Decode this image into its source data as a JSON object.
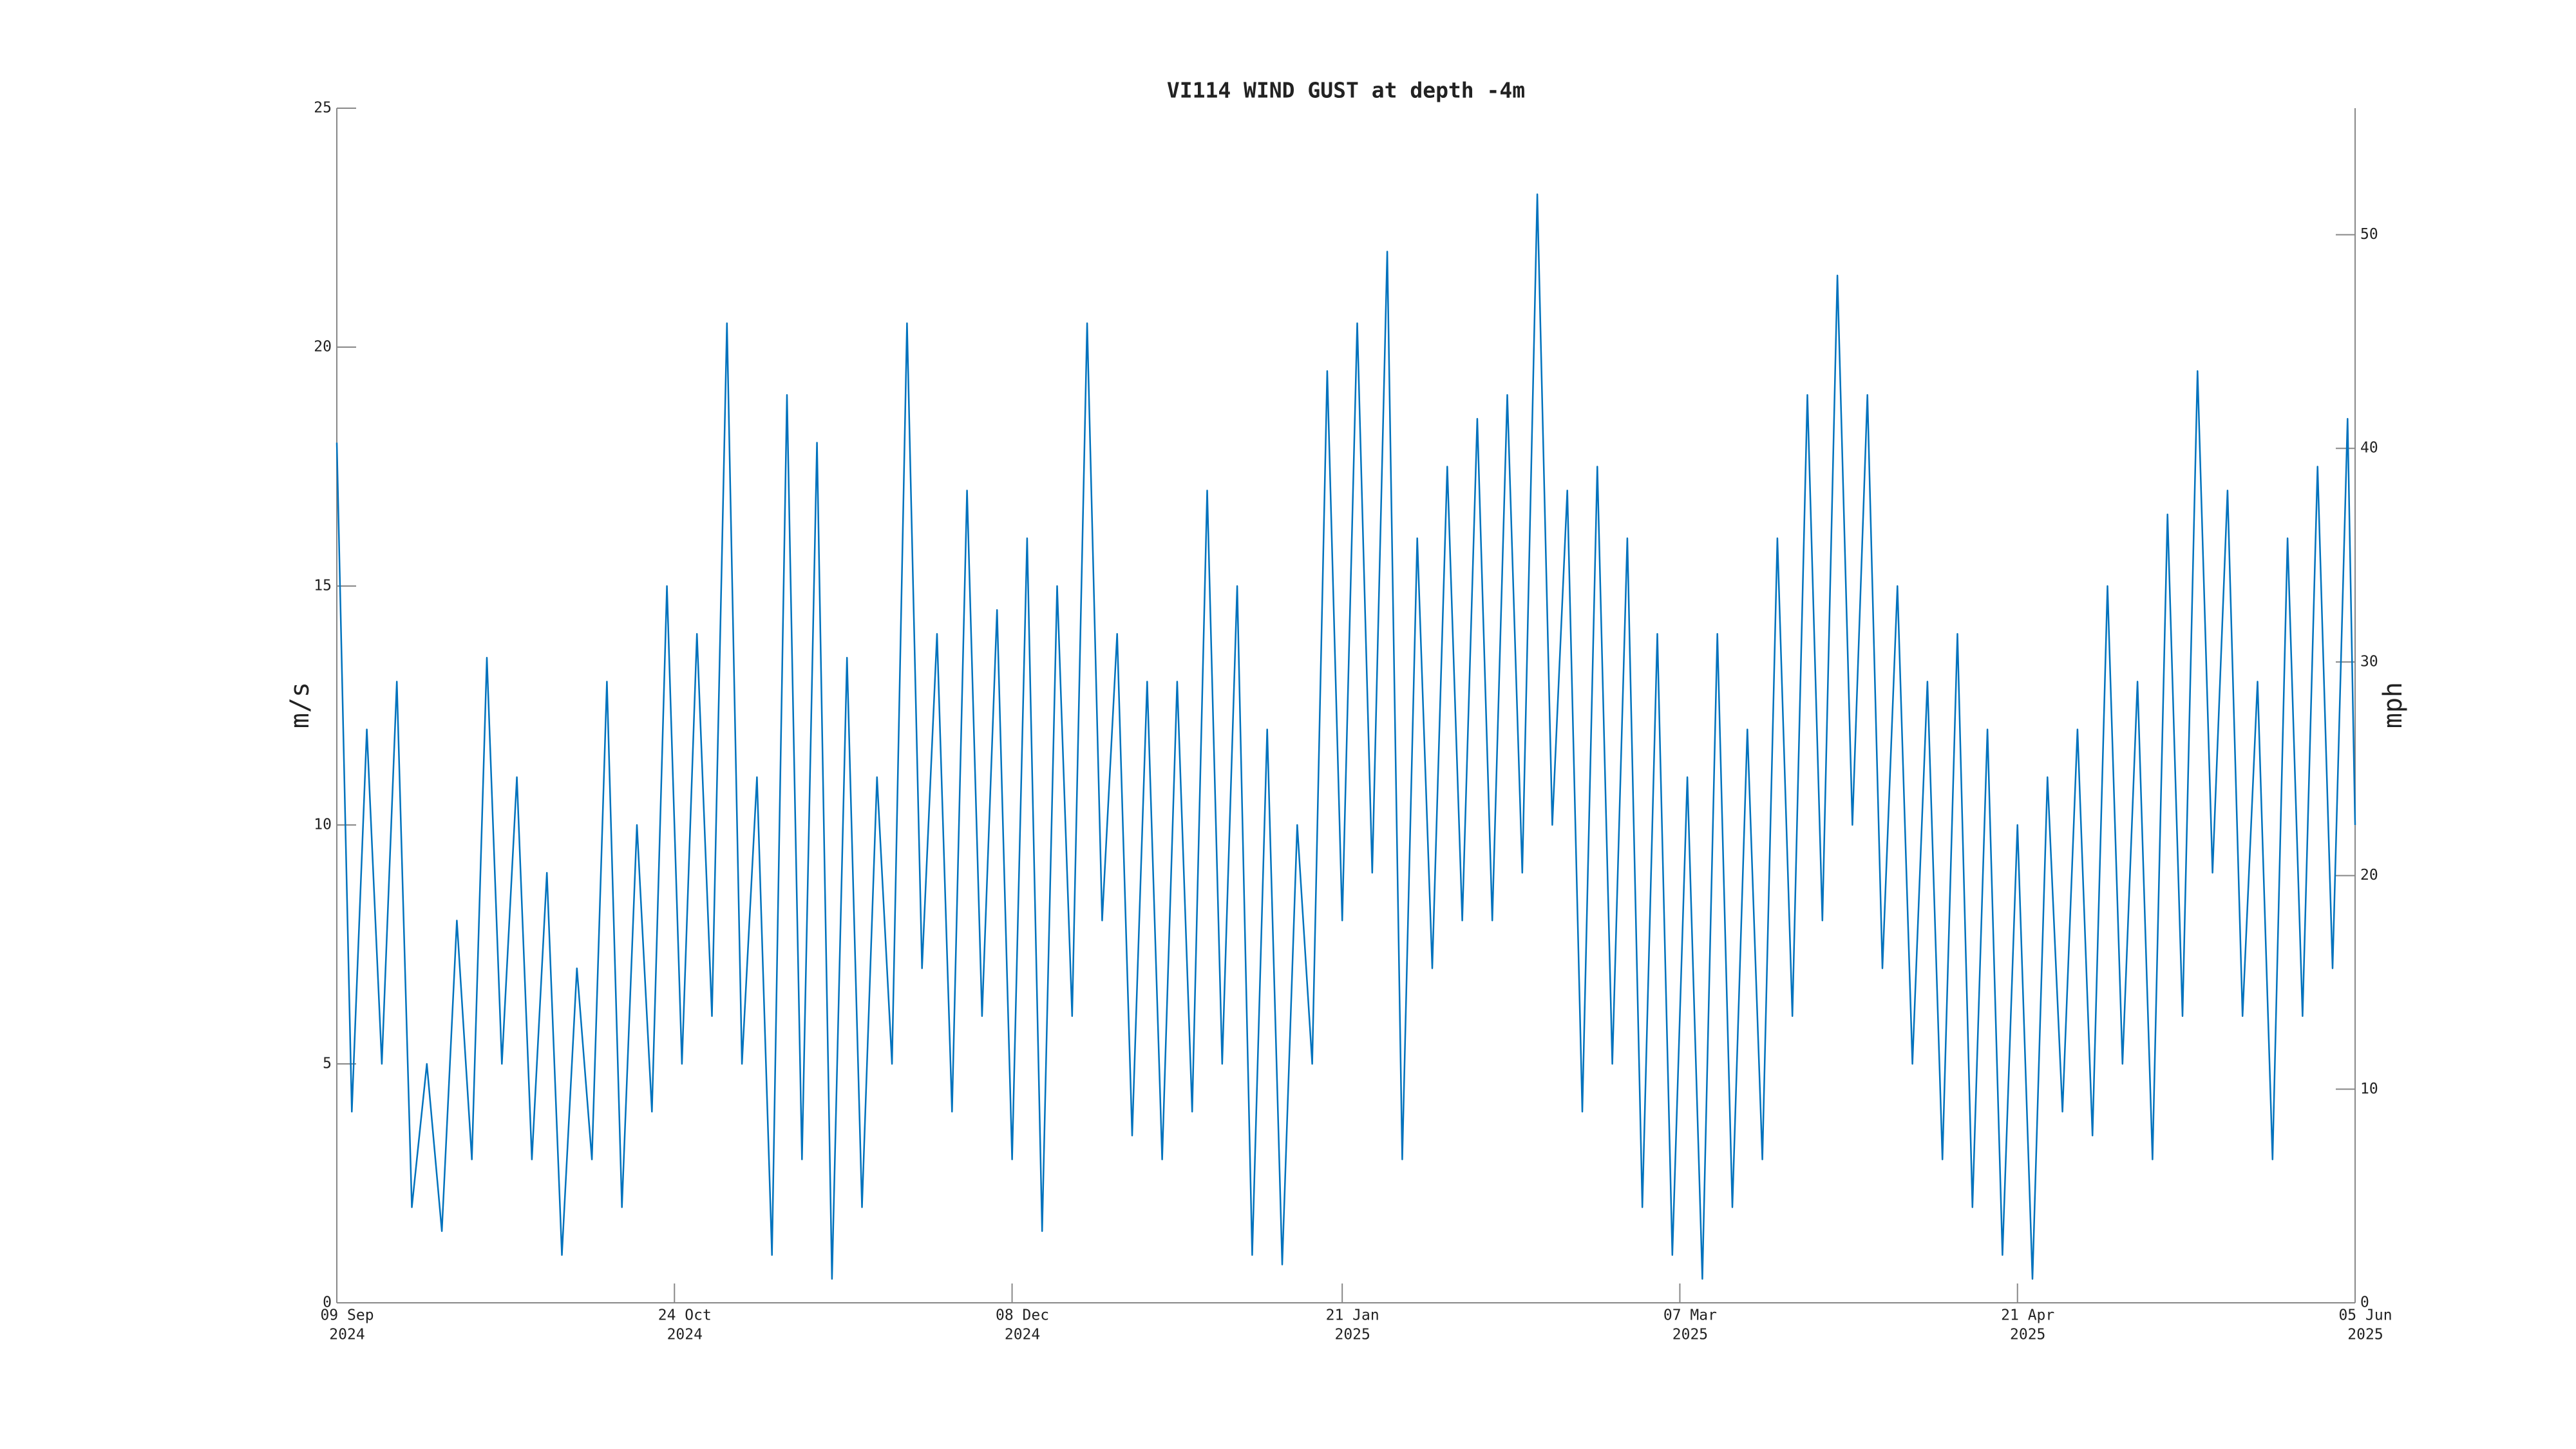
{
  "chart_data": {
    "type": "line",
    "title": "VI114 WIND GUST at depth -4m",
    "ylabel": "m/s",
    "y2label": "mph",
    "color": "#0072bd",
    "x": [
      "2024-09-09",
      "2024-09-11",
      "2024-09-13",
      "2024-09-15",
      "2024-09-17",
      "2024-09-19",
      "2024-09-21",
      "2024-09-23",
      "2024-09-25",
      "2024-09-27",
      "2024-09-29",
      "2024-10-01",
      "2024-10-03",
      "2024-10-05",
      "2024-10-07",
      "2024-10-09",
      "2024-10-11",
      "2024-10-13",
      "2024-10-15",
      "2024-10-17",
      "2024-10-19",
      "2024-10-21",
      "2024-10-23",
      "2024-10-25",
      "2024-10-27",
      "2024-10-29",
      "2024-10-31",
      "2024-11-02",
      "2024-11-04",
      "2024-11-06",
      "2024-11-08",
      "2024-11-10",
      "2024-11-12",
      "2024-11-14",
      "2024-11-16",
      "2024-11-18",
      "2024-11-20",
      "2024-11-22",
      "2024-11-24",
      "2024-11-26",
      "2024-11-28",
      "2024-11-30",
      "2024-12-02",
      "2024-12-04",
      "2024-12-06",
      "2024-12-08",
      "2024-12-10",
      "2024-12-12",
      "2024-12-14",
      "2024-12-16",
      "2024-12-18",
      "2024-12-20",
      "2024-12-22",
      "2024-12-24",
      "2024-12-26",
      "2024-12-28",
      "2024-12-30",
      "2025-01-01",
      "2025-01-03",
      "2025-01-05",
      "2025-01-07",
      "2025-01-09",
      "2025-01-11",
      "2025-01-13",
      "2025-01-15",
      "2025-01-17",
      "2025-01-19",
      "2025-01-21",
      "2025-01-23",
      "2025-01-25",
      "2025-01-27",
      "2025-01-29",
      "2025-01-31",
      "2025-02-02",
      "2025-02-04",
      "2025-02-06",
      "2025-02-08",
      "2025-02-10",
      "2025-02-12",
      "2025-02-14",
      "2025-02-16",
      "2025-02-18",
      "2025-02-20",
      "2025-02-22",
      "2025-02-24",
      "2025-02-26",
      "2025-02-28",
      "2025-03-02",
      "2025-03-04",
      "2025-03-06",
      "2025-03-08",
      "2025-03-10",
      "2025-03-12",
      "2025-03-14",
      "2025-03-16",
      "2025-03-18",
      "2025-03-20",
      "2025-03-22",
      "2025-03-24",
      "2025-03-26",
      "2025-03-28",
      "2025-03-30",
      "2025-04-01",
      "2025-04-03",
      "2025-04-05",
      "2025-04-07",
      "2025-04-09",
      "2025-04-11",
      "2025-04-13",
      "2025-04-15",
      "2025-04-17",
      "2025-04-19",
      "2025-04-21",
      "2025-04-23",
      "2025-04-25",
      "2025-04-27",
      "2025-04-29",
      "2025-05-01",
      "2025-05-03",
      "2025-05-05",
      "2025-05-07",
      "2025-05-09",
      "2025-05-11",
      "2025-05-13",
      "2025-05-15",
      "2025-05-17",
      "2025-05-19",
      "2025-05-21",
      "2025-05-23",
      "2025-05-25",
      "2025-05-27",
      "2025-05-29",
      "2025-05-31",
      "2025-06-02",
      "2025-06-04",
      "2025-06-05"
    ],
    "values": [
      18,
      4,
      12,
      5,
      13,
      2,
      5,
      1.5,
      8,
      3,
      13.5,
      5,
      11,
      3,
      9,
      1,
      7,
      3,
      13,
      2,
      10,
      4,
      15,
      5,
      14,
      6,
      20.5,
      5,
      11,
      1,
      19,
      3,
      18,
      0.5,
      13.5,
      2,
      11,
      5,
      20.5,
      7,
      14,
      4,
      17,
      6,
      14.5,
      3,
      16,
      1.5,
      15,
      6,
      20.5,
      8,
      14,
      3.5,
      13,
      3,
      13,
      4,
      17,
      5,
      15,
      1,
      12,
      0.8,
      10,
      5,
      19.5,
      8,
      20.5,
      9,
      22,
      3,
      16,
      7,
      17.5,
      8,
      18.5,
      8,
      19,
      9,
      23.2,
      10,
      17,
      4,
      17.5,
      5,
      16,
      2,
      14,
      1,
      11,
      0.5,
      14,
      2,
      12,
      3,
      16,
      6,
      19,
      8,
      21.5,
      10,
      19,
      7,
      15,
      5,
      13,
      3,
      14,
      2,
      12,
      1,
      10,
      0.5,
      11,
      4,
      12,
      3.5,
      15,
      5,
      13,
      3,
      16.5,
      6,
      19.5,
      9,
      17,
      6,
      13,
      3,
      16,
      6,
      17.5,
      7,
      18.5,
      10
    ],
    "xlim": [
      "2024-09-09",
      "2025-06-05"
    ],
    "xticks": [
      {
        "value": "2024-09-09",
        "label": [
          "09 Sep",
          "2024"
        ]
      },
      {
        "value": "2024-10-24",
        "label": [
          "24 Oct",
          "2024"
        ]
      },
      {
        "value": "2024-12-08",
        "label": [
          "08 Dec",
          "2024"
        ]
      },
      {
        "value": "2025-01-21",
        "label": [
          "21 Jan",
          "2025"
        ]
      },
      {
        "value": "2025-03-07",
        "label": [
          "07 Mar",
          "2025"
        ]
      },
      {
        "value": "2025-04-21",
        "label": [
          "21 Apr",
          "2025"
        ]
      },
      {
        "value": "2025-06-05",
        "label": [
          "05 Jun",
          "2025"
        ]
      }
    ],
    "ylim": [
      0,
      25
    ],
    "yticks": [
      0,
      5,
      10,
      15,
      20,
      25
    ],
    "y2lim": [
      0,
      55.9235
    ],
    "y2ticks": [
      0,
      10,
      20,
      30,
      40,
      50
    ],
    "grid": false
  }
}
